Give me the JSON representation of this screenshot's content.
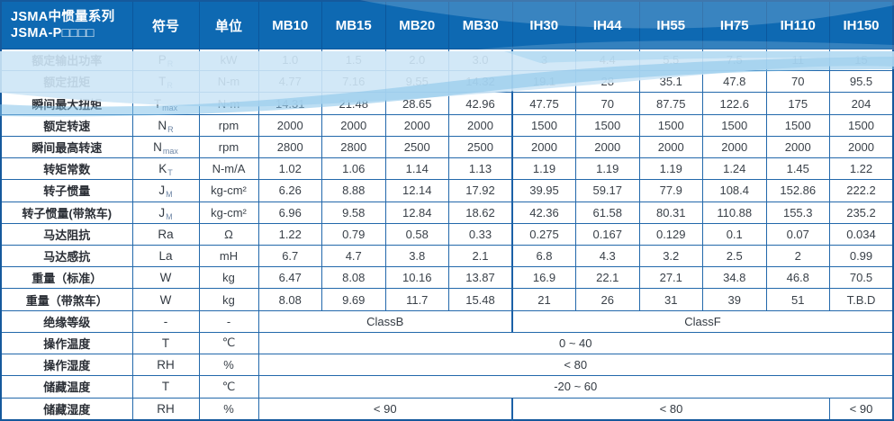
{
  "header": {
    "title_line1": "JSMA中惯量系列",
    "title_line2": "JSMA-P□□□□",
    "symbol_col": "符号",
    "unit_col": "单位",
    "models": [
      "MB10",
      "MB15",
      "MB20",
      "MB30",
      "IH30",
      "IH44",
      "IH55",
      "IH75",
      "IH110",
      "IH150"
    ]
  },
  "rows": [
    {
      "label": "额定输出功率",
      "symbol": "P",
      "sub": "R",
      "unit": "kW",
      "values": [
        "1.0",
        "1.5",
        "2.0",
        "3.0",
        "3",
        "4.4",
        "5.5",
        "7.5",
        "11",
        "15"
      ]
    },
    {
      "label": "额定扭矩",
      "symbol": "T",
      "sub": "R",
      "unit": "N-m",
      "values": [
        "4.77",
        "7.16",
        "9.55",
        "14.32",
        "19.1",
        "28",
        "35.1",
        "47.8",
        "70",
        "95.5"
      ]
    },
    {
      "label": "瞬间最大扭矩",
      "symbol": "T",
      "sub": "max",
      "unit": "N-m",
      "values": [
        "14.31",
        "21.48",
        "28.65",
        "42.96",
        "47.75",
        "70",
        "87.75",
        "122.6",
        "175",
        "204"
      ]
    },
    {
      "label": "额定转速",
      "symbol": "N",
      "sub": "R",
      "unit": "rpm",
      "values": [
        "2000",
        "2000",
        "2000",
        "2000",
        "1500",
        "1500",
        "1500",
        "1500",
        "1500",
        "1500"
      ]
    },
    {
      "label": "瞬间最高转速",
      "symbol": "N",
      "sub": "max",
      "unit": "rpm",
      "values": [
        "2800",
        "2800",
        "2500",
        "2500",
        "2000",
        "2000",
        "2000",
        "2000",
        "2000",
        "2000"
      ]
    },
    {
      "label": "转矩常数",
      "symbol": "K",
      "sub": "T",
      "unit": "N-m/A",
      "values": [
        "1.02",
        "1.06",
        "1.14",
        "1.13",
        "1.19",
        "1.19",
        "1.19",
        "1.24",
        "1.45",
        "1.22"
      ]
    },
    {
      "label": "转子惯量",
      "symbol": "J",
      "sub": "M",
      "unit": "kg-cm²",
      "values": [
        "6.26",
        "8.88",
        "12.14",
        "17.92",
        "39.95",
        "59.17",
        "77.9",
        "108.4",
        "152.86",
        "222.2"
      ]
    },
    {
      "label": "转子惯量(带煞车)",
      "symbol": "J",
      "sub": "M",
      "unit": "kg-cm²",
      "values": [
        "6.96",
        "9.58",
        "12.84",
        "18.62",
        "42.36",
        "61.58",
        "80.31",
        "110.88",
        "155.3",
        "235.2"
      ]
    },
    {
      "label": "马达阻抗",
      "symbol": "Ra",
      "sub": "",
      "unit": "Ω",
      "values": [
        "1.22",
        "0.79",
        "0.58",
        "0.33",
        "0.275",
        "0.167",
        "0.129",
        "0.1",
        "0.07",
        "0.034"
      ]
    },
    {
      "label": "马达感抗",
      "symbol": "La",
      "sub": "",
      "unit": "mH",
      "values": [
        "6.7",
        "4.7",
        "3.8",
        "2.1",
        "6.8",
        "4.3",
        "3.2",
        "2.5",
        "2",
        "0.99"
      ]
    },
    {
      "label": "重量（标准）",
      "symbol": "W",
      "sub": "",
      "unit": "kg",
      "values": [
        "6.47",
        "8.08",
        "10.16",
        "13.87",
        "16.9",
        "22.1",
        "27.1",
        "34.8",
        "46.8",
        "70.5"
      ]
    },
    {
      "label": "重量（带煞车）",
      "symbol": "W",
      "sub": "",
      "unit": "kg",
      "values": [
        "8.08",
        "9.69",
        "11.7",
        "15.48",
        "21",
        "26",
        "31",
        "39",
        "51",
        "T.B.D"
      ]
    },
    {
      "label": "绝缘等级",
      "symbol": "-",
      "sub": "",
      "unit": "-",
      "spans": [
        {
          "text": "ClassB",
          "cols": 4
        },
        {
          "text": "ClassF",
          "cols": 6
        }
      ]
    },
    {
      "label": "操作温度",
      "symbol": "T",
      "sub": "",
      "unit": "℃",
      "spans": [
        {
          "text": "0 ~ 40",
          "cols": 10
        }
      ]
    },
    {
      "label": "操作湿度",
      "symbol": "RH",
      "sub": "",
      "unit": "%",
      "spans": [
        {
          "text": "< 80",
          "cols": 10
        }
      ]
    },
    {
      "label": "储藏温度",
      "symbol": "T",
      "sub": "",
      "unit": "℃",
      "spans": [
        {
          "text": "-20 ~ 60",
          "cols": 10
        }
      ]
    },
    {
      "label": "储藏湿度",
      "symbol": "RH",
      "sub": "",
      "unit": "%",
      "spans": [
        {
          "text": "< 90",
          "cols": 4
        },
        {
          "text": "< 80",
          "cols": 5
        },
        {
          "text": "< 90",
          "cols": 1
        }
      ]
    }
  ],
  "colors": {
    "header_bg": "#0e69b2",
    "border": "#2268ab",
    "outer_border": "#15599c",
    "wave_light": "#cde6f6",
    "wave_mid": "#85c3ea",
    "text": "#3a4149"
  }
}
